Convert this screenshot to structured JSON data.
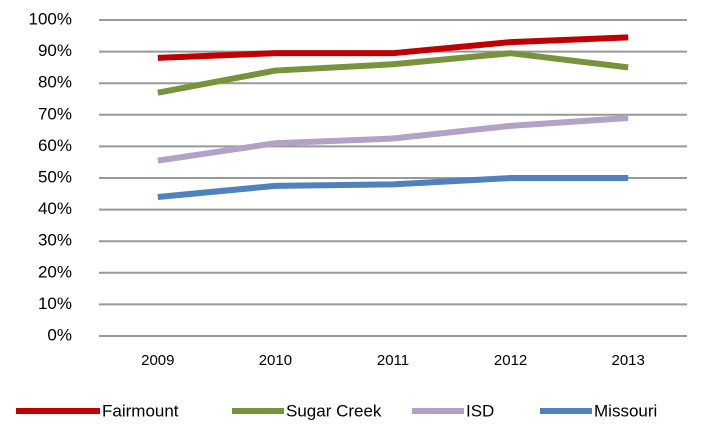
{
  "chart_data": {
    "type": "line",
    "categories": [
      "2009",
      "2010",
      "2011",
      "2012",
      "2013"
    ],
    "series": [
      {
        "name": "Fairmount",
        "color": "#c00000",
        "values": [
          88,
          89.5,
          89.5,
          93,
          94.5
        ]
      },
      {
        "name": "Sugar Creek",
        "color": "#77933c",
        "values": [
          77,
          84,
          86,
          89.5,
          85
        ]
      },
      {
        "name": "ISD",
        "color": "#b3a2c7",
        "values": [
          55.5,
          61,
          62.5,
          66.5,
          69
        ]
      },
      {
        "name": "Missouri",
        "color": "#4f81bd",
        "values": [
          44,
          47.5,
          48,
          50,
          50
        ]
      }
    ],
    "ylim": [
      0,
      100
    ],
    "yticks": [
      {
        "value": 0,
        "label": "0%"
      },
      {
        "value": 10,
        "label": "10%"
      },
      {
        "value": 20,
        "label": "20%"
      },
      {
        "value": 30,
        "label": "30%"
      },
      {
        "value": 40,
        "label": "40%"
      },
      {
        "value": 50,
        "label": "50%"
      },
      {
        "value": 60,
        "label": "60%"
      },
      {
        "value": 70,
        "label": "70%"
      },
      {
        "value": 80,
        "label": "80%"
      },
      {
        "value": 90,
        "label": "90%"
      },
      {
        "value": 100,
        "label": "100%"
      }
    ],
    "grid": true,
    "legend": "bottom"
  }
}
